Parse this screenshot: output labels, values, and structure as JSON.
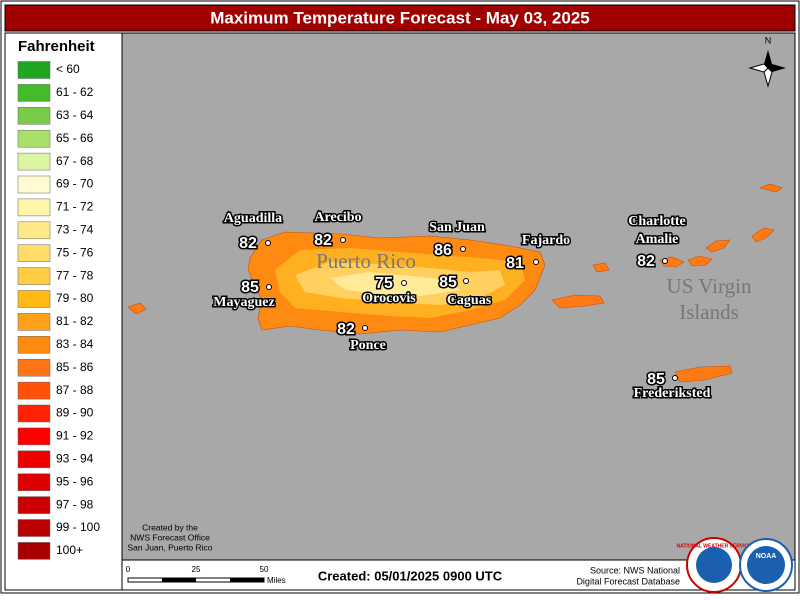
{
  "title": "Maximum Temperature Forecast - May 03, 2025",
  "legend": {
    "title": "Fahrenheit",
    "items": [
      {
        "label": "< 60",
        "color": "#1fa81f"
      },
      {
        "label": "61 - 62",
        "color": "#45bb2a"
      },
      {
        "label": "63 - 64",
        "color": "#78cc48"
      },
      {
        "label": "65 - 66",
        "color": "#a8e06a"
      },
      {
        "label": "67 - 68",
        "color": "#dcf5a0"
      },
      {
        "label": "69 - 70",
        "color": "#fffad0"
      },
      {
        "label": "71 - 72",
        "color": "#fff6aa"
      },
      {
        "label": "73 - 74",
        "color": "#ffe88a"
      },
      {
        "label": "75 - 76",
        "color": "#ffdb6a"
      },
      {
        "label": "77 - 78",
        "color": "#ffcd44"
      },
      {
        "label": "79 - 80",
        "color": "#ffbb14"
      },
      {
        "label": "81 - 82",
        "color": "#ffa01a"
      },
      {
        "label": "83 - 84",
        "color": "#ff8a10"
      },
      {
        "label": "85 - 86",
        "color": "#ff7514"
      },
      {
        "label": "87 - 88",
        "color": "#ff5208"
      },
      {
        "label": "89 - 90",
        "color": "#ff2200"
      },
      {
        "label": "91 - 92",
        "color": "#ff0000"
      },
      {
        "label": "93 - 94",
        "color": "#ee0000"
      },
      {
        "label": "95 - 96",
        "color": "#dd0000"
      },
      {
        "label": "97 - 98",
        "color": "#cc0000"
      },
      {
        "label": "99 - 100",
        "color": "#bb0000"
      },
      {
        "label": "100+",
        "color": "#a80000"
      }
    ]
  },
  "cities": [
    {
      "name": [
        "Aguadilla"
      ],
      "value": 82
    },
    {
      "name": [
        "Arecibo"
      ],
      "value": 82
    },
    {
      "name": [
        "San Juan"
      ],
      "value": 86
    },
    {
      "name": [
        "Fajardo"
      ],
      "value": 81
    },
    {
      "name": [
        "Charlotte",
        "Amalie"
      ],
      "value": 82
    },
    {
      "name": [
        "Mayaguez"
      ],
      "value": 85
    },
    {
      "name": [
        "Orocovis"
      ],
      "value": 75
    },
    {
      "name": [
        "Caguas"
      ],
      "value": 85
    },
    {
      "name": [
        "Ponce"
      ],
      "value": 82
    },
    {
      "name": [
        "Frederiksted"
      ],
      "value": 85
    }
  ],
  "regions": [
    {
      "lines": [
        "Puerto Rico"
      ]
    },
    {
      "lines": [
        "US Virgin",
        "Islands"
      ]
    }
  ],
  "north": "N",
  "credit": [
    "Created by the",
    "NWS Forecast Office",
    "San Juan, Puerto Rico"
  ],
  "scale": {
    "ticks": [
      0,
      25,
      50
    ],
    "unit": "Miles"
  },
  "created": "Created: 05/01/2025 0900 UTC",
  "source": [
    "Source: NWS National",
    "Digital Forecast Database"
  ],
  "logos": {
    "nws": "NATIONAL WEATHER SERVICE",
    "noaa": "NOAA"
  }
}
